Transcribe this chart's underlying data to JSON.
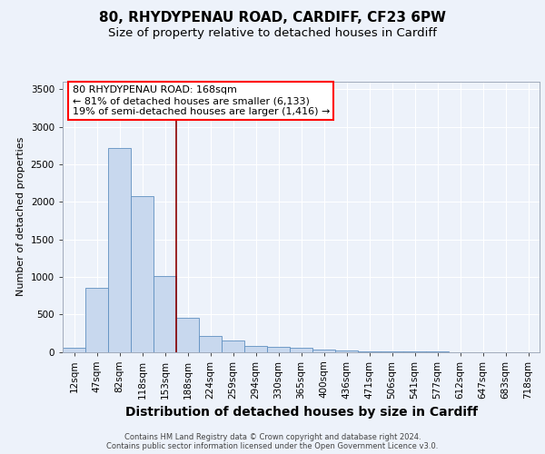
{
  "title1": "80, RHYDYPENAU ROAD, CARDIFF, CF23 6PW",
  "title2": "Size of property relative to detached houses in Cardiff",
  "xlabel": "Distribution of detached houses by size in Cardiff",
  "ylabel": "Number of detached properties",
  "bar_labels": [
    "12sqm",
    "47sqm",
    "82sqm",
    "118sqm",
    "153sqm",
    "188sqm",
    "224sqm",
    "259sqm",
    "294sqm",
    "330sqm",
    "365sqm",
    "400sqm",
    "436sqm",
    "471sqm",
    "506sqm",
    "541sqm",
    "577sqm",
    "612sqm",
    "647sqm",
    "683sqm",
    "718sqm"
  ],
  "bar_values": [
    60,
    850,
    2720,
    2070,
    1010,
    450,
    210,
    150,
    80,
    65,
    55,
    30,
    20,
    8,
    4,
    2,
    1,
    0,
    0,
    0,
    0
  ],
  "bar_color": "#c8d8ee",
  "bar_edge_color": "#6090c0",
  "ylim": [
    0,
    3600
  ],
  "yticks": [
    0,
    500,
    1000,
    1500,
    2000,
    2500,
    3000,
    3500
  ],
  "red_line_x": 4.5,
  "annotation_text1": "80 RHYDYPENAU ROAD: 168sqm",
  "annotation_text2": "← 81% of detached houses are smaller (6,133)",
  "annotation_text3": "19% of semi-detached houses are larger (1,416) →",
  "footer1": "Contains HM Land Registry data © Crown copyright and database right 2024.",
  "footer2": "Contains public sector information licensed under the Open Government Licence v3.0.",
  "background_color": "#edf2fa",
  "grid_color": "#ffffff",
  "title1_fontsize": 11,
  "title2_fontsize": 9.5,
  "xlabel_fontsize": 10,
  "ylabel_fontsize": 8,
  "tick_fontsize": 7.5,
  "footer_fontsize": 6,
  "ann_fontsize": 8
}
